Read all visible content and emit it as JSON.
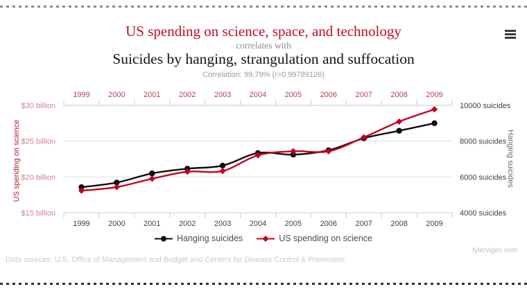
{
  "header": {
    "title_red": "US spending on science, space, and technology",
    "connector": "correlates with",
    "title_black": "Suicides by hanging, strangulation and suffocation",
    "correlation": "Correlation: 99.79% (r=0.99789126)"
  },
  "menu": {
    "icon": "hamburger-menu"
  },
  "footer": {
    "watermark": "tylervigen.com",
    "data_sources": "Data sources: U.S. Office of Management and Budget and Centers for Disease Control & Prevention"
  },
  "colors": {
    "title_red": "#c00d28",
    "series_red": "#c40022",
    "series_black": "#0e0e0e",
    "top_year_labels": "#b8414e",
    "left_tick_labels": "#cf8289",
    "dark_axis_text": "#3f3f3f",
    "left_axis_title": "#b5202c",
    "right_axis_title": "#6a6a6a",
    "grid": "#dedede",
    "axis_line": "#c8c8c8"
  },
  "chart_data": {
    "type": "line",
    "x": [
      1999,
      2000,
      2001,
      2002,
      2003,
      2004,
      2005,
      2006,
      2007,
      2008,
      2009
    ],
    "series": [
      {
        "name": "Hanging suicides",
        "axis": "right",
        "color_key": "series_black",
        "marker": "circle",
        "values": [
          5427,
          5688,
          6198,
          6462,
          6635,
          7336,
          7248,
          7491,
          8161,
          8578,
          9000
        ]
      },
      {
        "name": "US spending on science",
        "axis": "left",
        "color_key": "series_red",
        "marker": "diamond",
        "values": [
          18.079,
          18.594,
          19.753,
          20.734,
          20.831,
          23.029,
          23.597,
          23.584,
          25.525,
          27.731,
          29.449
        ]
      }
    ],
    "left_axis": {
      "label": "US spending on science",
      "units": "billions of US dollars",
      "range": [
        15,
        30
      ],
      "tick_values": [
        30,
        25,
        20,
        15
      ],
      "tick_labels": [
        "$30 billion",
        "$25 billion",
        "$20 billion",
        "$15 billion"
      ]
    },
    "right_axis": {
      "label": "Hanging suicides",
      "units": "suicides",
      "range": [
        4000,
        10000
      ],
      "tick_values": [
        10000,
        8000,
        6000,
        4000
      ],
      "tick_labels": [
        "10000 suicides",
        "8000 suicides",
        "6000 suicides",
        "4000 suicides"
      ]
    },
    "grid": "horizontal",
    "legend_position": "bottom"
  }
}
